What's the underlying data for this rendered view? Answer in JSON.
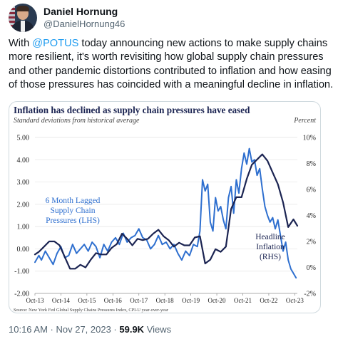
{
  "tweet": {
    "display_name": "Daniel Hornung",
    "handle": "@DanielHornung46",
    "text_before": "With ",
    "mention": "@POTUS",
    "text_after": " today announcing new actions to make supply chains more resilient, it's worth revisiting how global supply chain pressures and other pandemic distortions contributed to inflation and how easing of those pressures has coincided with a meaningful decline in inflation.",
    "timestamp": "10:16 AM · Nov 27, 2023 · ",
    "views_count": "59.9K",
    "views_label": " Views"
  },
  "chart_data": {
    "type": "line",
    "title": "Inflation has declined as supply chain pressures have eased",
    "subtitle": "Standard deviations from historical average",
    "right_axis_title": "Percent",
    "source": "Source: New York Fed Global Supply Chains Pressures Index, CPI-U year-over-year",
    "x_ticks": [
      "Oct-13",
      "Oct-14",
      "Oct-15",
      "Oct-16",
      "Oct-17",
      "Oct-18",
      "Oct-19",
      "Oct-20",
      "Oct-21",
      "Oct-22",
      "Oct-23"
    ],
    "left_ticks": [
      "5.00",
      "4.00",
      "3.00",
      "2.00",
      "1.00",
      "0.00",
      "-1.00",
      "-2.00"
    ],
    "right_ticks": [
      "10%",
      "8%",
      "6%",
      "4%",
      "2%",
      "0%",
      "-2%"
    ],
    "ylim_left": [
      -2,
      5
    ],
    "ylim_right": [
      -2,
      10
    ],
    "xlim": [
      2013.75,
      2023.85
    ],
    "annotations": {
      "gscpi_label": [
        "6 Month Lagged",
        "Supply Chain",
        "Pressures (LHS)"
      ],
      "cpi_label": [
        "Headline",
        "Inflation",
        "(RHS)"
      ]
    },
    "colors": {
      "gscpi": "#2e6fcf",
      "cpi": "#1b2452",
      "title": "#1b2452"
    },
    "series": [
      {
        "key": "gscpi",
        "axis": "left",
        "x": [
          2013.75,
          2013.9,
          2014.0,
          2014.15,
          2014.3,
          2014.45,
          2014.6,
          2014.75,
          2014.9,
          2015.05,
          2015.2,
          2015.35,
          2015.5,
          2015.65,
          2015.8,
          2015.95,
          2016.1,
          2016.25,
          2016.4,
          2016.55,
          2016.7,
          2016.85,
          2017.0,
          2017.15,
          2017.3,
          2017.45,
          2017.6,
          2017.75,
          2017.9,
          2018.05,
          2018.2,
          2018.35,
          2018.5,
          2018.65,
          2018.8,
          2018.95,
          2019.1,
          2019.25,
          2019.4,
          2019.55,
          2019.7,
          2019.85,
          2020.0,
          2020.1,
          2020.2,
          2020.3,
          2020.4,
          2020.5,
          2020.6,
          2020.7,
          2020.8,
          2020.9,
          2021.0,
          2021.1,
          2021.2,
          2021.3,
          2021.4,
          2021.5,
          2021.6,
          2021.7,
          2021.8,
          2021.9,
          2022.0,
          2022.1,
          2022.2,
          2022.3,
          2022.4,
          2022.5,
          2022.6,
          2022.7,
          2022.8,
          2022.9,
          2023.0,
          2023.1,
          2023.2,
          2023.3,
          2023.4,
          2023.5,
          2023.6,
          2023.7,
          2023.8
        ],
        "values": [
          -0.6,
          -0.3,
          -0.5,
          -0.1,
          -0.4,
          -0.7,
          -0.2,
          0.1,
          -0.4,
          -0.3,
          0.2,
          -0.2,
          0.0,
          0.2,
          -0.1,
          0.3,
          0.1,
          -0.4,
          0.2,
          -0.1,
          0.3,
          0.5,
          0.2,
          0.7,
          0.3,
          0.5,
          0.6,
          0.9,
          0.5,
          0.4,
          0.0,
          0.2,
          0.6,
          0.2,
          0.3,
          0.0,
          0.2,
          -0.2,
          -0.5,
          -0.1,
          -0.3,
          0.2,
          0.1,
          0.8,
          3.1,
          2.6,
          2.9,
          1.2,
          0.8,
          2.3,
          1.7,
          1.9,
          1.3,
          0.9,
          2.3,
          2.8,
          1.6,
          3.1,
          2.5,
          3.6,
          4.3,
          3.8,
          4.5,
          3.9,
          4.0,
          3.3,
          3.6,
          2.7,
          1.9,
          1.5,
          1.2,
          1.4,
          0.9,
          1.3,
          0.6,
          -0.1,
          0.3,
          -0.5,
          -0.9,
          -1.1,
          -1.3
        ]
      },
      {
        "key": "cpi",
        "axis": "right",
        "x": [
          2013.75,
          2013.9,
          2014.1,
          2014.3,
          2014.5,
          2014.7,
          2014.9,
          2015.1,
          2015.3,
          2015.5,
          2015.7,
          2015.9,
          2016.1,
          2016.3,
          2016.5,
          2016.7,
          2016.9,
          2017.1,
          2017.3,
          2017.5,
          2017.7,
          2017.9,
          2018.1,
          2018.3,
          2018.5,
          2018.7,
          2018.9,
          2019.1,
          2019.3,
          2019.5,
          2019.7,
          2019.9,
          2020.1,
          2020.3,
          2020.5,
          2020.7,
          2020.9,
          2021.1,
          2021.3,
          2021.5,
          2021.7,
          2021.9,
          2022.1,
          2022.3,
          2022.5,
          2022.7,
          2022.9,
          2023.1,
          2023.3,
          2023.5,
          2023.7,
          2023.85
        ],
        "values": [
          1.0,
          1.2,
          1.6,
          2.0,
          2.0,
          1.7,
          0.8,
          -0.1,
          -0.1,
          0.2,
          0.0,
          0.6,
          1.1,
          1.0,
          1.0,
          1.5,
          1.8,
          2.6,
          2.2,
          1.7,
          2.2,
          2.1,
          2.2,
          2.6,
          2.9,
          2.4,
          2.1,
          1.6,
          1.9,
          1.7,
          1.7,
          2.3,
          2.4,
          0.3,
          0.6,
          1.4,
          1.2,
          1.6,
          4.5,
          5.4,
          5.4,
          6.8,
          7.9,
          8.3,
          8.7,
          8.2,
          7.3,
          6.4,
          5.0,
          3.1,
          3.7,
          3.2
        ]
      }
    ]
  }
}
